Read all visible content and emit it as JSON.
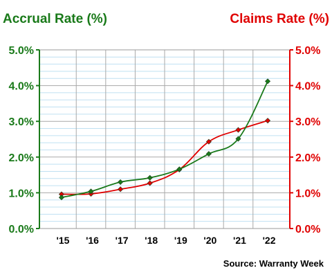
{
  "chart_data": {
    "type": "line",
    "categories": [
      "'15",
      "'16",
      "'17",
      "'18",
      "'19",
      "'20",
      "'21",
      "'22"
    ],
    "series": [
      {
        "name": "Accrual Rate (%)",
        "axis": "left",
        "color": "#1a7a1a",
        "values": [
          0.87,
          1.04,
          1.3,
          1.42,
          1.66,
          2.09,
          2.51,
          4.12
        ]
      },
      {
        "name": "Claims Rate (%)",
        "axis": "right",
        "color": "#e00000",
        "values": [
          0.96,
          0.97,
          1.1,
          1.27,
          1.65,
          2.43,
          2.76,
          3.02
        ]
      }
    ],
    "left_axis": {
      "label": "Accrual Rate (%)",
      "color": "#1a7a1a",
      "ticks": [
        "0.0%",
        "1.0%",
        "2.0%",
        "3.0%",
        "4.0%",
        "5.0%"
      ]
    },
    "right_axis": {
      "label": "Claims Rate (%)",
      "color": "#e00000",
      "ticks": [
        "0.0%",
        "1.0%",
        "2.0%",
        "3.0%",
        "4.0%",
        "5.0%"
      ]
    },
    "ylim": [
      0,
      5
    ],
    "grid": true,
    "source": "Source: Warranty Week"
  }
}
